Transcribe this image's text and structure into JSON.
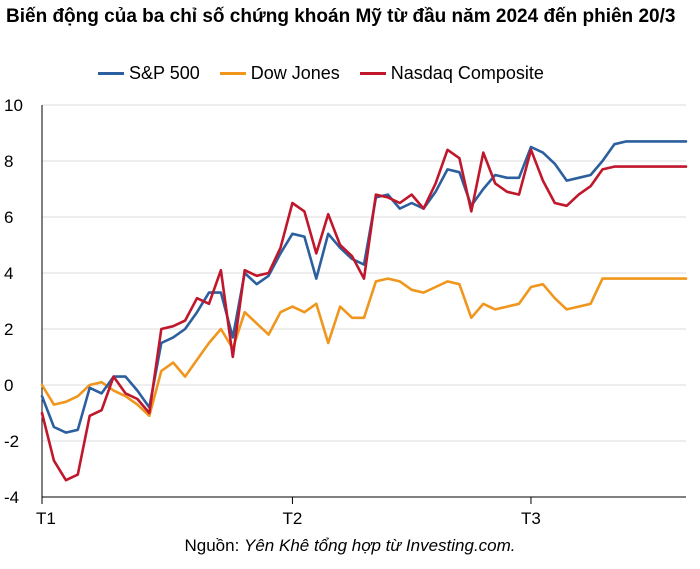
{
  "title": "Biến động của ba chỉ số chứng khoán Mỹ từ đầu năm 2024 đến phiên 20/3",
  "source": {
    "prefix": "Nguồn: ",
    "text": "Yên Khê tổng hợp từ Investing.com."
  },
  "chart_data": {
    "type": "line",
    "title": "Biến động của ba chỉ số chứng khoán Mỹ từ đầu năm 2024 đến phiên 20/3",
    "xlabel": "",
    "ylabel": "",
    "ylim": [
      -4,
      10
    ],
    "yticks": [
      -4,
      -2,
      0,
      2,
      4,
      6,
      8,
      10
    ],
    "xlim": [
      0,
      54
    ],
    "xticks": [
      {
        "label": "T1",
        "x": 0
      },
      {
        "label": "T2",
        "x": 21
      },
      {
        "label": "T3",
        "x": 41
      }
    ],
    "grid": "horizontal",
    "legend": "top",
    "x": [
      0,
      1,
      2,
      3,
      4,
      5,
      6,
      7,
      8,
      9,
      10,
      11,
      12,
      13,
      14,
      15,
      16,
      17,
      18,
      19,
      20,
      21,
      22,
      23,
      24,
      25,
      26,
      27,
      28,
      29,
      30,
      31,
      32,
      33,
      34,
      35,
      36,
      37,
      38,
      39,
      40,
      41,
      42,
      43,
      44,
      45,
      46,
      47,
      48,
      49,
      50,
      51,
      52,
      53,
      54
    ],
    "series": [
      {
        "name": "S&P 500",
        "color": "#2c5f9e",
        "values": [
          -0.4,
          -1.5,
          -1.7,
          -1.6,
          -0.1,
          -0.3,
          0.3,
          0.3,
          -0.2,
          -0.8,
          1.5,
          1.7,
          2.0,
          2.6,
          3.3,
          3.3,
          1.7,
          4.0,
          3.6,
          3.9,
          4.7,
          5.4,
          5.3,
          3.8,
          5.4,
          4.9,
          4.5,
          4.3,
          6.7,
          6.8,
          6.3,
          6.5,
          6.3,
          6.9,
          7.7,
          7.6,
          6.4,
          7.0,
          7.5,
          7.4,
          7.4,
          8.5,
          8.3,
          7.9,
          7.3,
          7.4,
          7.5,
          8.0,
          8.6,
          8.7,
          8.7,
          8.7,
          8.7,
          8.7,
          8.7
        ]
      },
      {
        "name": "Dow Jones",
        "color": "#f0961d",
        "values": [
          0.0,
          -0.7,
          -0.6,
          -0.4,
          0.0,
          0.1,
          -0.2,
          -0.4,
          -0.7,
          -1.1,
          0.5,
          0.8,
          0.3,
          0.9,
          1.5,
          2.0,
          1.3,
          2.6,
          2.2,
          1.8,
          2.6,
          2.8,
          2.6,
          2.9,
          1.5,
          2.8,
          2.4,
          2.4,
          3.7,
          3.8,
          3.7,
          3.4,
          3.3,
          3.5,
          3.7,
          3.6,
          2.4,
          2.9,
          2.7,
          2.8,
          2.9,
          3.5,
          3.6,
          3.1,
          2.7,
          2.8,
          2.9,
          3.8,
          3.8,
          3.8,
          3.8,
          3.8,
          3.8,
          3.8,
          3.8
        ]
      },
      {
        "name": "Nasdaq Composite",
        "color": "#c0172c",
        "values": [
          -1.0,
          -2.7,
          -3.4,
          -3.2,
          -1.1,
          -0.9,
          0.3,
          -0.3,
          -0.5,
          -1.0,
          2.0,
          2.1,
          2.3,
          3.1,
          2.9,
          4.1,
          1.0,
          4.1,
          3.9,
          4.0,
          4.9,
          6.5,
          6.2,
          4.7,
          6.1,
          5.0,
          4.6,
          3.8,
          6.8,
          6.7,
          6.5,
          6.8,
          6.3,
          7.2,
          8.4,
          8.1,
          6.2,
          8.3,
          7.2,
          6.9,
          6.8,
          8.4,
          7.3,
          6.5,
          6.4,
          6.8,
          7.1,
          7.7,
          7.8,
          7.8,
          7.8,
          7.8,
          7.8,
          7.8,
          7.8
        ]
      }
    ]
  }
}
